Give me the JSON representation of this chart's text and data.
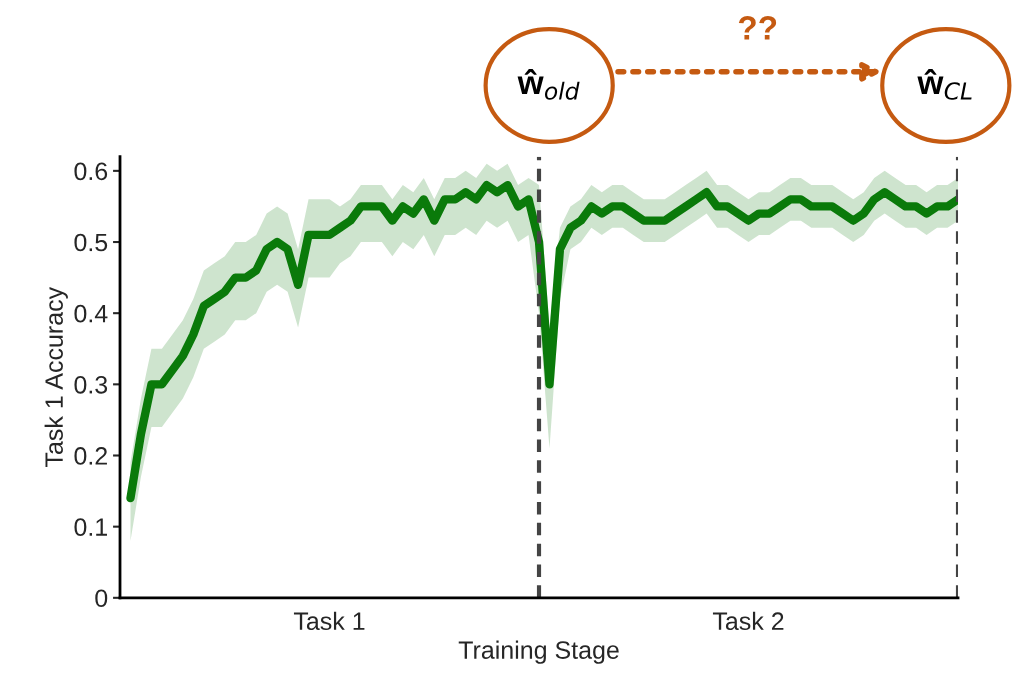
{
  "chart_data": {
    "type": "line",
    "xlabel": "Training Stage",
    "ylabel": "Task 1 Accuracy",
    "categories": [
      null,
      null,
      null,
      null,
      null,
      null,
      null,
      null,
      null,
      null,
      null,
      null,
      null,
      null,
      null,
      null,
      null,
      null,
      null,
      null,
      "Task 1",
      null,
      null,
      null,
      null,
      null,
      null,
      null,
      null,
      null,
      null,
      null,
      null,
      null,
      null,
      null,
      null,
      null,
      null,
      null,
      null,
      null,
      null,
      null,
      null,
      null,
      null,
      null,
      null,
      null,
      null,
      null,
      null,
      null,
      null,
      null,
      null,
      null,
      null,
      null,
      "Task 2",
      null,
      null,
      null,
      null,
      null,
      null,
      null,
      null,
      null,
      null,
      null,
      null,
      null,
      null,
      null,
      null,
      null,
      null,
      null,
      null
    ],
    "series": [
      {
        "color": "#0a7a0a",
        "values": [
          null,
          0.14,
          0.23,
          0.3,
          0.3,
          0.32,
          0.34,
          0.37,
          0.41,
          0.42,
          0.43,
          0.45,
          0.45,
          0.46,
          0.49,
          0.5,
          0.49,
          0.44,
          0.51,
          0.51,
          0.51,
          0.52,
          0.53,
          0.55,
          0.55,
          0.55,
          0.53,
          0.55,
          0.54,
          0.56,
          0.53,
          0.56,
          0.56,
          0.57,
          0.56,
          0.58,
          0.57,
          0.58,
          0.55,
          0.56,
          0.5,
          0.3,
          0.49,
          0.52,
          0.53,
          0.55,
          0.54,
          0.55,
          0.55,
          0.54,
          0.53,
          0.53,
          0.53,
          0.54,
          0.55,
          0.56,
          0.57,
          0.55,
          0.55,
          0.54,
          0.53,
          0.54,
          0.54,
          0.55,
          0.56,
          0.56,
          0.55,
          0.55,
          0.55,
          0.54,
          0.53,
          0.54,
          0.56,
          0.57,
          0.56,
          0.55,
          0.55,
          0.54,
          0.55,
          0.55,
          0.56
        ],
        "lower": [
          null,
          0.08,
          0.17,
          0.24,
          0.24,
          0.26,
          0.28,
          0.31,
          0.35,
          0.36,
          0.37,
          0.39,
          0.39,
          0.4,
          0.43,
          0.44,
          0.43,
          0.38,
          0.45,
          0.45,
          0.45,
          0.47,
          0.48,
          0.5,
          0.5,
          0.5,
          0.48,
          0.5,
          0.49,
          0.51,
          0.48,
          0.51,
          0.51,
          0.52,
          0.51,
          0.53,
          0.52,
          0.53,
          0.5,
          0.51,
          0.4,
          0.21,
          0.42,
          0.49,
          0.5,
          0.52,
          0.51,
          0.52,
          0.52,
          0.51,
          0.5,
          0.5,
          0.5,
          0.51,
          0.52,
          0.53,
          0.54,
          0.52,
          0.52,
          0.51,
          0.5,
          0.51,
          0.51,
          0.52,
          0.53,
          0.53,
          0.52,
          0.52,
          0.52,
          0.51,
          0.5,
          0.51,
          0.53,
          0.54,
          0.53,
          0.52,
          0.52,
          0.51,
          0.52,
          0.52,
          0.53
        ],
        "upper": [
          null,
          0.19,
          0.28,
          0.35,
          0.35,
          0.37,
          0.39,
          0.42,
          0.46,
          0.47,
          0.48,
          0.5,
          0.5,
          0.51,
          0.54,
          0.55,
          0.54,
          0.49,
          0.56,
          0.56,
          0.56,
          0.55,
          0.56,
          0.58,
          0.58,
          0.58,
          0.56,
          0.58,
          0.57,
          0.59,
          0.56,
          0.59,
          0.59,
          0.6,
          0.59,
          0.61,
          0.6,
          0.61,
          0.58,
          0.59,
          0.58,
          0.38,
          0.52,
          0.55,
          0.56,
          0.58,
          0.57,
          0.58,
          0.58,
          0.57,
          0.56,
          0.56,
          0.56,
          0.57,
          0.58,
          0.59,
          0.6,
          0.58,
          0.58,
          0.57,
          0.56,
          0.57,
          0.57,
          0.58,
          0.59,
          0.59,
          0.58,
          0.58,
          0.58,
          0.57,
          0.56,
          0.57,
          0.59,
          0.6,
          0.59,
          0.58,
          0.58,
          0.57,
          0.58,
          0.58,
          0.59
        ]
      }
    ],
    "ylim": [
      0,
      0.62
    ],
    "yticks": [
      0,
      0.1,
      0.2,
      0.3,
      0.4,
      0.5,
      0.6
    ],
    "grid": false,
    "legend": false,
    "marker": "none",
    "line_style": "solid",
    "annotations": [
      "ŵ$_{old}$",
      "??",
      "ŵ$_{CL}$"
    ]
  }
}
